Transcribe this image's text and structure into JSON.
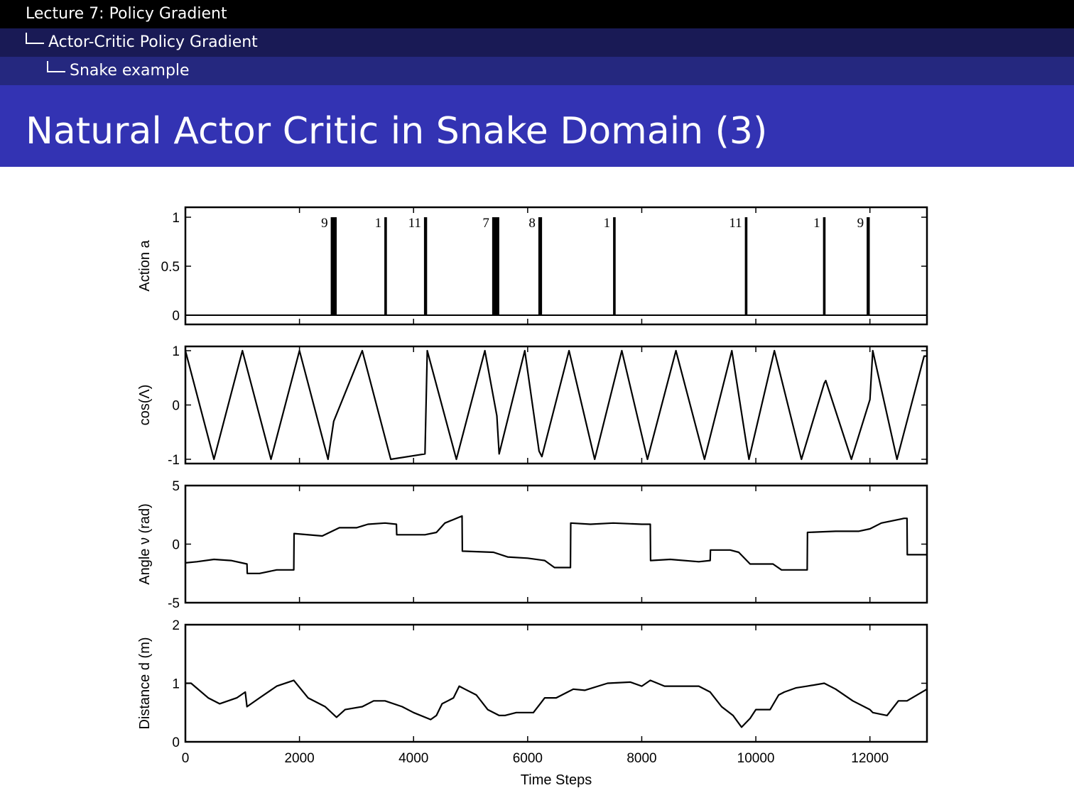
{
  "header": {
    "lecture": "Lecture 7: Policy Gradient",
    "section": "Actor-Critic Policy Gradient",
    "subsection": "Snake example"
  },
  "slide": {
    "title": "Natural Actor Critic in Snake Domain (3)"
  },
  "chart_data": [
    {
      "type": "line",
      "ylabel": "Action a",
      "xlim": [
        0,
        13000
      ],
      "ylim": [
        0,
        1
      ],
      "yticks": [
        0,
        0.5,
        1
      ],
      "ytick_labels": [
        "0",
        "0.5",
        "1"
      ],
      "baseline": 0,
      "spikes": [
        {
          "x": 2600,
          "width": 80,
          "label": "9"
        },
        {
          "x": 3510,
          "width": 20,
          "label": "1"
        },
        {
          "x": 4210,
          "width": 30,
          "label": "11"
        },
        {
          "x": 5440,
          "width": 100,
          "label": "7"
        },
        {
          "x": 6220,
          "width": 40,
          "label": "8"
        },
        {
          "x": 7520,
          "width": 20,
          "label": "1"
        },
        {
          "x": 9830,
          "width": 20,
          "label": "11"
        },
        {
          "x": 11200,
          "width": 20,
          "label": "1"
        },
        {
          "x": 11970,
          "width": 30,
          "label": "9"
        }
      ]
    },
    {
      "type": "line",
      "ylabel": "cos(Λ)",
      "xlim": [
        0,
        13000
      ],
      "ylim": [
        -1,
        1
      ],
      "yticks": [
        -1,
        0,
        1
      ],
      "ytick_labels": [
        "-1",
        "0",
        "1"
      ],
      "x": [
        0,
        500,
        1000,
        1500,
        2000,
        2500,
        2600,
        3100,
        3600,
        4200,
        4240,
        4750,
        5250,
        5460,
        5500,
        5950,
        6200,
        6250,
        6725,
        7175,
        7650,
        8100,
        8600,
        9100,
        9580,
        9840,
        9880,
        10325,
        10800,
        11200,
        11225,
        11675,
        12000,
        12050,
        12475,
        12950,
        13000
      ],
      "y": [
        1,
        -1,
        1,
        -1,
        1,
        -1,
        -0.3,
        1,
        -1,
        -0.9,
        1,
        -1,
        1,
        -0.2,
        -0.9,
        1,
        -0.85,
        -0.95,
        1,
        -1,
        1,
        -1,
        1,
        -1,
        1,
        -0.75,
        -1,
        1,
        -1,
        0.4,
        0.45,
        -1,
        0.1,
        1,
        -1,
        0.9,
        0.9
      ]
    },
    {
      "type": "line",
      "ylabel": "Angle ν (rad)",
      "xlim": [
        0,
        13000
      ],
      "ylim": [
        -5,
        5
      ],
      "yticks": [
        -5,
        0,
        5
      ],
      "ytick_labels": [
        "-5",
        "0",
        "5"
      ],
      "x": [
        0,
        200,
        500,
        800,
        1080,
        1085,
        1300,
        1600,
        1900,
        1905,
        2400,
        2700,
        3000,
        3200,
        3500,
        3700,
        3705,
        4200,
        4400,
        4550,
        4850,
        4855,
        5400,
        5650,
        6000,
        6300,
        6470,
        6750,
        6755,
        7100,
        7500,
        8000,
        8150,
        8155,
        8500,
        9000,
        9200,
        9205,
        9550,
        9700,
        9900,
        10300,
        10450,
        10900,
        10905,
        11400,
        11800,
        12000,
        12200,
        12600,
        12650,
        12655,
        13000
      ],
      "y": [
        -1.6,
        -1.5,
        -1.3,
        -1.4,
        -1.7,
        -2.5,
        -2.5,
        -2.2,
        -2.2,
        0.9,
        0.7,
        1.4,
        1.4,
        1.7,
        1.8,
        1.7,
        0.8,
        0.8,
        1.0,
        1.8,
        2.4,
        -0.6,
        -0.7,
        -1.1,
        -1.2,
        -1.4,
        -2.0,
        -2.0,
        1.8,
        1.7,
        1.8,
        1.7,
        1.7,
        -1.4,
        -1.3,
        -1.5,
        -1.4,
        -0.5,
        -0.5,
        -0.7,
        -1.7,
        -1.7,
        -2.2,
        -2.2,
        1.0,
        1.1,
        1.1,
        1.3,
        1.8,
        2.2,
        2.2,
        -0.9,
        -0.9
      ]
    },
    {
      "type": "line",
      "ylabel": "Distance d (m)",
      "xlabel": "Time Steps",
      "xlim": [
        0,
        13000
      ],
      "ylim": [
        0,
        2
      ],
      "xticks": [
        0,
        2000,
        4000,
        6000,
        8000,
        10000,
        12000
      ],
      "xtick_labels": [
        "0",
        "2000",
        "4000",
        "6000",
        "8000",
        "10000",
        "12000"
      ],
      "yticks": [
        0,
        1,
        2
      ],
      "ytick_labels": [
        "0",
        "1",
        "2"
      ],
      "x": [
        0,
        100,
        400,
        600,
        900,
        1050,
        1080,
        1300,
        1600,
        1900,
        2150,
        2450,
        2650,
        2800,
        3100,
        3300,
        3500,
        3800,
        4000,
        4300,
        4400,
        4500,
        4600,
        4700,
        4800,
        4900,
        5100,
        5300,
        5500,
        5600,
        5800,
        6100,
        6300,
        6500,
        6700,
        6800,
        7000,
        7400,
        7800,
        8000,
        8150,
        8400,
        8700,
        9000,
        9200,
        9400,
        9600,
        9750,
        9900,
        10000,
        10250,
        10400,
        10500,
        10700,
        10900,
        11200,
        11400,
        11700,
        12000,
        12050,
        12300,
        12500,
        12650,
        13000
      ],
      "y": [
        1.0,
        1.0,
        0.75,
        0.65,
        0.75,
        0.85,
        0.6,
        0.75,
        0.95,
        1.05,
        0.75,
        0.6,
        0.42,
        0.55,
        0.6,
        0.7,
        0.7,
        0.6,
        0.5,
        0.38,
        0.45,
        0.65,
        0.7,
        0.75,
        0.95,
        0.9,
        0.8,
        0.55,
        0.45,
        0.45,
        0.5,
        0.5,
        0.75,
        0.75,
        0.85,
        0.9,
        0.88,
        1.0,
        1.02,
        0.95,
        1.05,
        0.95,
        0.95,
        0.95,
        0.85,
        0.6,
        0.45,
        0.25,
        0.4,
        0.55,
        0.55,
        0.8,
        0.85,
        0.92,
        0.95,
        1.0,
        0.9,
        0.7,
        0.55,
        0.5,
        0.45,
        0.7,
        0.7,
        0.9
      ]
    }
  ]
}
